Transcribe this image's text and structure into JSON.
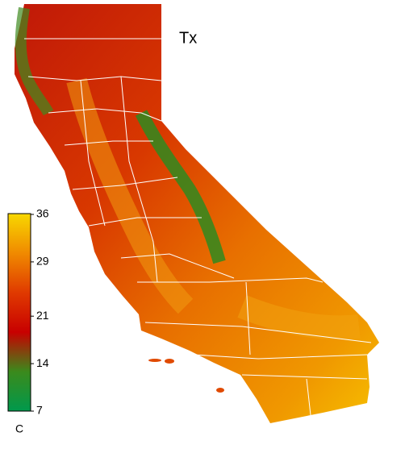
{
  "map": {
    "title": "Tx",
    "colorbar": {
      "unit": "C",
      "range": [
        7,
        36
      ],
      "ticks": [
        36,
        29,
        21,
        14,
        7
      ],
      "colors": [
        "#00994c",
        "#3b8a1c",
        "#c80000",
        "#e03a00",
        "#f08a00",
        "#f8d800"
      ]
    }
  }
}
